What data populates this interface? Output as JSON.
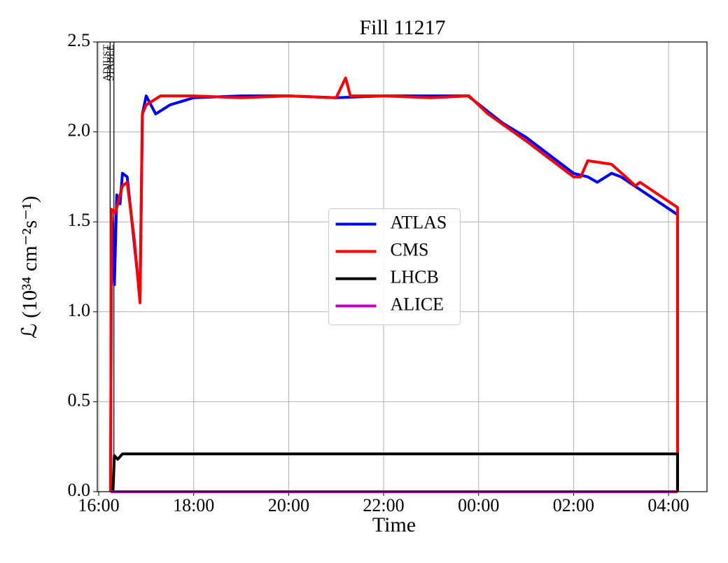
{
  "chart_data": {
    "type": "line",
    "title": "Fill 11217",
    "xlabel": "Time",
    "ylabel": "ℒ (10³⁴ cm⁻²s⁻¹)",
    "xlim": [
      15.97,
      28.81
    ],
    "ylim": [
      0,
      2.5
    ],
    "xticks": [
      {
        "value": 16,
        "label": "16:00"
      },
      {
        "value": 18,
        "label": "18:00"
      },
      {
        "value": 20,
        "label": "20:00"
      },
      {
        "value": 22,
        "label": "22:00"
      },
      {
        "value": 24,
        "label": "00:00"
      },
      {
        "value": 26,
        "label": "02:00"
      },
      {
        "value": 28,
        "label": "04:00"
      }
    ],
    "yticks": [
      {
        "value": 0,
        "label": "0.0"
      },
      0.5,
      {
        "value": 1,
        "label": "1.0"
      },
      1.5,
      {
        "value": 2,
        "label": "2.0"
      },
      2.5
    ],
    "grid": true,
    "legend": "center",
    "annotations": [
      {
        "x": 16.24,
        "label": "ADJUST"
      },
      {
        "x": 16.32,
        "label": "STABLE"
      }
    ],
    "series": [
      {
        "name": "ATLAS",
        "color": "#0000ff",
        "x": [
          16.25,
          16.27,
          16.33,
          16.38,
          16.45,
          16.5,
          16.6,
          16.7,
          16.8,
          16.87,
          16.92,
          17.0,
          17.2,
          17.5,
          18.0,
          19.0,
          20.0,
          21.0,
          22.0,
          23.0,
          23.78,
          24.5,
          25.0,
          26.0,
          26.3,
          26.5,
          26.8,
          27.0,
          28.19,
          28.19
        ],
        "values": [
          0,
          1.55,
          1.15,
          1.65,
          1.6,
          1.77,
          1.75,
          1.5,
          1.25,
          1.1,
          2.1,
          2.2,
          2.1,
          2.15,
          2.19,
          2.2,
          2.2,
          2.19,
          2.2,
          2.2,
          2.2,
          2.05,
          1.97,
          1.77,
          1.75,
          1.72,
          1.77,
          1.75,
          1.54,
          0
        ]
      },
      {
        "name": "CMS",
        "color": "#ff0000",
        "x": [
          16.25,
          16.27,
          16.35,
          16.5,
          16.6,
          16.75,
          16.87,
          16.92,
          17.0,
          17.3,
          18.0,
          19.0,
          20.0,
          21.0,
          21.2,
          21.3,
          22.0,
          23.0,
          23.8,
          24.2,
          25.0,
          26.0,
          26.15,
          26.3,
          26.8,
          27.1,
          27.3,
          27.4,
          28.19,
          28.19
        ],
        "values": [
          0,
          1.57,
          1.55,
          1.7,
          1.72,
          1.4,
          1.05,
          2.1,
          2.15,
          2.2,
          2.2,
          2.19,
          2.2,
          2.19,
          2.3,
          2.2,
          2.2,
          2.19,
          2.2,
          2.1,
          1.95,
          1.75,
          1.75,
          1.84,
          1.82,
          1.75,
          1.7,
          1.72,
          1.58,
          0
        ]
      },
      {
        "name": "LHCB",
        "color": "#000000",
        "x": [
          16.3,
          16.33,
          16.4,
          16.5,
          18.0,
          20.0,
          22.0,
          24.0,
          26.0,
          28.19,
          28.19
        ],
        "values": [
          0,
          0.2,
          0.18,
          0.21,
          0.21,
          0.21,
          0.21,
          0.21,
          0.21,
          0.21,
          0
        ]
      },
      {
        "name": "ALICE",
        "color": "#bf00bf",
        "x": [
          16.25,
          28.19
        ],
        "values": [
          0,
          0
        ]
      }
    ]
  }
}
